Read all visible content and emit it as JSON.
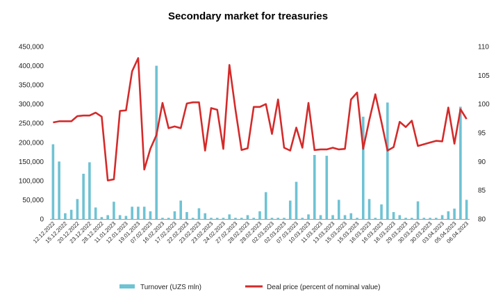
{
  "chart_data": {
    "type": "bar+line",
    "title": "Secondary market for treasuries",
    "colors": {
      "bars": "#6ec3d4",
      "line": "#d42a2a",
      "axis": "#999999"
    },
    "left_axis": {
      "ylim": [
        0,
        450000
      ],
      "ticks": [
        "0",
        "50,000",
        "100,000",
        "150,000",
        "200,000",
        "250,000",
        "300,000",
        "350,000",
        "400,000",
        "450,000"
      ],
      "tick_values": [
        0,
        50000,
        100000,
        150000,
        200000,
        250000,
        300000,
        350000,
        400000,
        450000
      ]
    },
    "right_axis": {
      "ylim": [
        80,
        110
      ],
      "ticks": [
        "80",
        "85",
        "90",
        "95",
        "100",
        "105",
        "110"
      ],
      "tick_values": [
        80,
        85,
        90,
        95,
        100,
        105,
        110
      ]
    },
    "x_tick_labels": [
      "12.12.2022",
      "15.12.2022",
      "20.12.2022",
      "23.12.2022",
      "28.12.2022",
      "11.01.2023",
      "12.01.2023",
      "19.01.2023",
      "07.02.2023",
      "16.02.2023",
      "17.02.2023",
      "22.02.2023",
      "23.02.2023",
      "23.02.2023",
      "24.02.2023",
      "27.02.2023",
      "28.02.2023",
      "28.02.2023",
      "02.03.2023",
      "02.03.2023",
      "07.03.2023",
      "10.03.2023",
      "11.03.2023",
      "13.03.2023",
      "15.03.2023",
      "15.03.2023",
      "16.03.2023",
      "16.03.2023",
      "16.03.2023",
      "29.03.2023",
      "30.03.2023",
      "30.03.2023",
      "03.04.2023",
      "05.04.2023",
      "06.04.2023"
    ],
    "series": [
      {
        "name": "Turnover (UZS mln)",
        "axis": "left",
        "type": "bar",
        "values": [
          195000,
          150000,
          15000,
          24000,
          52000,
          118000,
          148000,
          30000,
          5000,
          10000,
          45000,
          10000,
          8000,
          32000,
          32000,
          32000,
          20000,
          400000,
          3000,
          3000,
          20000,
          48000,
          18000,
          3000,
          28000,
          15000,
          3000,
          3000,
          3000,
          12000,
          3000,
          3000,
          10000,
          3000,
          20000,
          70000,
          3000,
          3000,
          3000,
          48000,
          97000,
          3000,
          12000,
          167000,
          10000,
          165000,
          10000,
          50000,
          10000,
          15000,
          3000,
          267000,
          52000,
          3000,
          38000,
          304000,
          18000,
          10000,
          3000,
          3000,
          46000,
          3000,
          3000,
          3000,
          10000,
          20000,
          27000,
          293000,
          50000
        ]
      },
      {
        "name": "Deal price (percent of nominal value)",
        "axis": "right",
        "type": "line",
        "values": [
          96.8,
          97.0,
          97.0,
          97.0,
          97.9,
          98.0,
          98.0,
          98.5,
          97.8,
          86.7,
          86.9,
          98.8,
          98.9,
          105.7,
          108.0,
          88.6,
          92.2,
          94.6,
          100.2,
          95.8,
          96.1,
          95.8,
          100.1,
          100.3,
          100.3,
          91.9,
          99.3,
          99.0,
          92.2,
          106.8,
          99.0,
          92.0,
          92.3,
          99.5,
          99.5,
          100.0,
          94.8,
          100.8,
          92.4,
          91.9,
          95.9,
          92.4,
          100.2,
          92.0,
          92.1,
          92.1,
          92.4,
          92.1,
          92.2,
          100.8,
          102.0,
          92.2,
          97.2,
          101.7,
          96.9,
          91.9,
          92.5,
          96.9,
          96.0,
          97.1,
          92.7,
          93.0,
          93.3,
          93.6,
          93.5,
          99.4,
          93.1,
          99.1,
          97.4
        ]
      }
    ],
    "legend": {
      "placement": "bottom",
      "entries": [
        "Turnover (UZS mln)",
        "Deal price (percent of nominal value)"
      ]
    }
  }
}
